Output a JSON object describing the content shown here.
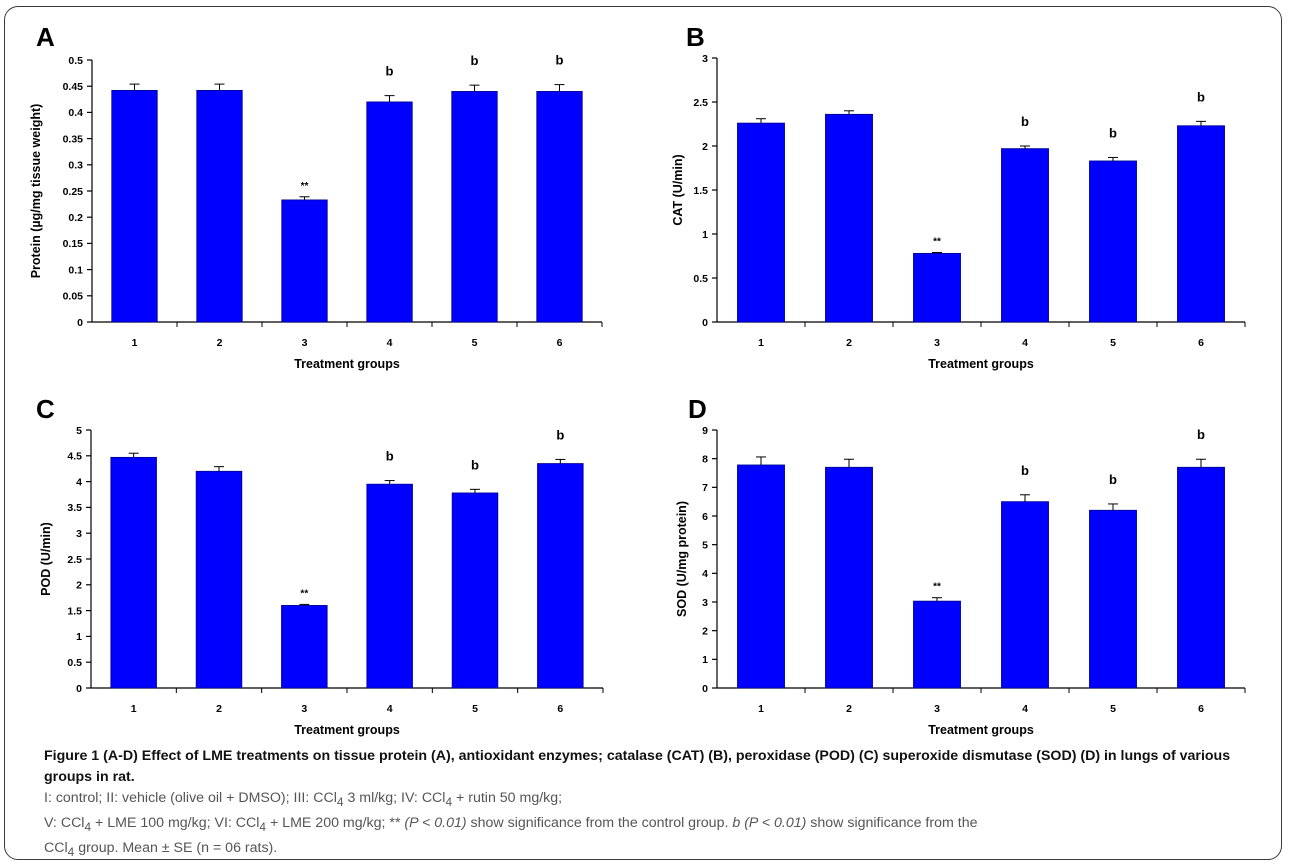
{
  "chart_data": [
    {
      "panel": "A",
      "type": "bar",
      "categories": [
        "1",
        "2",
        "3",
        "4",
        "5",
        "6"
      ],
      "values": [
        0.442,
        0.442,
        0.233,
        0.42,
        0.44,
        0.44
      ],
      "errors": [
        0.012,
        0.012,
        0.006,
        0.012,
        0.012,
        0.013
      ],
      "annotations": [
        "",
        "",
        "**",
        "b",
        "b",
        "b"
      ],
      "xlabel": "Treatment groups",
      "ylabel": "Protein (µg/mg tissue weight)",
      "ylim": [
        0,
        0.5
      ],
      "yticks": [
        "0",
        "0.05",
        "0.1",
        "0.15",
        "0.2",
        "0.25",
        "0.3",
        "0.35",
        "0.4",
        "0.45",
        "0.5"
      ],
      "bar_color": "#0000ff",
      "grid": false
    },
    {
      "panel": "B",
      "type": "bar",
      "categories": [
        "1",
        "2",
        "3",
        "4",
        "5",
        "6"
      ],
      "values": [
        2.26,
        2.36,
        0.78,
        1.97,
        1.83,
        2.23
      ],
      "errors": [
        0.05,
        0.04,
        0.01,
        0.03,
        0.04,
        0.05
      ],
      "annotations": [
        "",
        "",
        "**",
        "b",
        "b",
        "b"
      ],
      "xlabel": "Treatment groups",
      "ylabel": "CAT (U/min)",
      "ylim": [
        0,
        3
      ],
      "yticks": [
        "0",
        "0.5",
        "1",
        "1.5",
        "2",
        "2.5",
        "3"
      ],
      "bar_color": "#0000ff",
      "grid": false
    },
    {
      "panel": "C",
      "type": "bar",
      "categories": [
        "1",
        "2",
        "3",
        "4",
        "5",
        "6"
      ],
      "values": [
        4.47,
        4.2,
        1.6,
        3.95,
        3.78,
        4.35
      ],
      "errors": [
        0.08,
        0.09,
        0.02,
        0.07,
        0.07,
        0.08
      ],
      "annotations": [
        "",
        "",
        "**",
        "b",
        "b",
        "b"
      ],
      "xlabel": "Treatment groups",
      "ylabel": "POD (U/min)",
      "ylim": [
        0,
        5
      ],
      "yticks": [
        "0",
        "0.5",
        "1",
        "1.5",
        "2",
        "2.5",
        "3",
        "3.5",
        "4",
        "4.5",
        "5"
      ],
      "bar_color": "#0000ff",
      "grid": false
    },
    {
      "panel": "D",
      "type": "bar",
      "categories": [
        "1",
        "2",
        "3",
        "4",
        "5",
        "6"
      ],
      "values": [
        7.78,
        7.7,
        3.03,
        6.5,
        6.2,
        7.7
      ],
      "errors": [
        0.28,
        0.28,
        0.12,
        0.24,
        0.22,
        0.28
      ],
      "annotations": [
        "",
        "",
        "**",
        "b",
        "b",
        "b"
      ],
      "xlabel": "Treatment groups",
      "ylabel": "SOD (U/mg protein)",
      "ylim": [
        0,
        9
      ],
      "yticks": [
        "0",
        "1",
        "2",
        "3",
        "4",
        "5",
        "6",
        "7",
        "8",
        "9"
      ],
      "bar_color": "#0000ff",
      "grid": false
    }
  ],
  "caption": {
    "title": "Figure 1 (A-D) Effect of LME treatments on tissue protein (A), antioxidant enzymes; catalase (CAT) (B), peroxidase (POD) (C) superoxide dismutase (SOD) (D) in lungs of various groups in rat.",
    "line_2a": "I: control; II: vehicle (olive oil + DMSO); III: CCl",
    "line_2b": " 3 ml/kg; IV: CCl",
    "line_2c": " + rutin 50 mg/kg;",
    "line_3a": "V: CCl",
    "line_3b": " + LME 100 mg/kg; VI: CCl",
    "line_3c": " + LME 200 mg/kg; ** ",
    "line_3d": "(P < 0.01)",
    "line_3e": " show significance from the control group. ",
    "line_3f": "b (P < 0.01)",
    "line_3g": " show significance from the",
    "line_4a": "CCl",
    "line_4b": " group. Mean ± SE (n = 06 rats).",
    "subscript": "4"
  }
}
